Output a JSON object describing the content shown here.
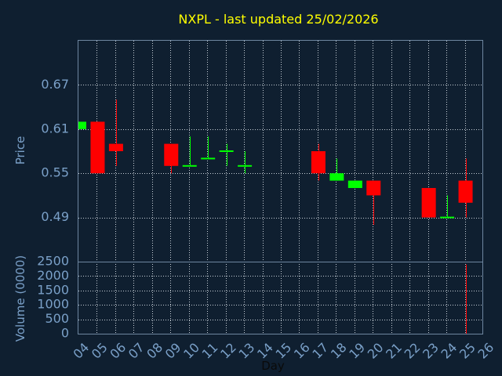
{
  "chart_data": {
    "type": "candlestick",
    "title": "NXPL - last updated 25/02/2026",
    "xlabel": "Day",
    "ylabel": "Price",
    "volume_label": "Volume (0000)",
    "colors": {
      "up": "#00ff00",
      "down": "#ff0000",
      "title": "#ffff00",
      "axis_text": "#7aa0c8",
      "background": "#0f1f30"
    },
    "x_ticks": [
      "04",
      "05",
      "06",
      "07",
      "08",
      "09",
      "10",
      "11",
      "12",
      "13",
      "14",
      "15",
      "16",
      "17",
      "18",
      "19",
      "20",
      "21",
      "22",
      "23",
      "24",
      "25",
      "26"
    ],
    "price_ticks": [
      0.49,
      0.55,
      0.61,
      0.67
    ],
    "price_tick_labels": [
      "0.49",
      "0.55",
      "0.61",
      "0.67"
    ],
    "price_range": [
      0.43,
      0.73
    ],
    "volume_ticks": [
      0,
      500,
      1000,
      1500,
      2000,
      2500
    ],
    "volume_tick_labels": [
      "0",
      "500",
      "1000",
      "1500",
      "2000",
      "2500"
    ],
    "volume_range": [
      0,
      2500
    ],
    "grid": true,
    "candles": [
      {
        "day": "04",
        "open": 0.61,
        "high": 0.62,
        "low": 0.61,
        "close": 0.62,
        "volume": 0
      },
      {
        "day": "05",
        "open": 0.62,
        "high": 0.62,
        "low": 0.55,
        "close": 0.55,
        "volume": 0
      },
      {
        "day": "06",
        "open": 0.59,
        "high": 0.65,
        "low": 0.56,
        "close": 0.58,
        "volume": 0
      },
      {
        "day": "09",
        "open": 0.59,
        "high": 0.59,
        "low": 0.55,
        "close": 0.56,
        "volume": 0
      },
      {
        "day": "10",
        "open": 0.56,
        "high": 0.6,
        "low": 0.56,
        "close": 0.56,
        "volume": 0
      },
      {
        "day": "11",
        "open": 0.57,
        "high": 0.6,
        "low": 0.57,
        "close": 0.57,
        "volume": 0
      },
      {
        "day": "12",
        "open": 0.58,
        "high": 0.59,
        "low": 0.56,
        "close": 0.58,
        "volume": 0
      },
      {
        "day": "13",
        "open": 0.56,
        "high": 0.58,
        "low": 0.55,
        "close": 0.56,
        "volume": 0
      },
      {
        "day": "17",
        "open": 0.58,
        "high": 0.59,
        "low": 0.54,
        "close": 0.55,
        "volume": 0
      },
      {
        "day": "18",
        "open": 0.54,
        "high": 0.57,
        "low": 0.54,
        "close": 0.55,
        "volume": 0
      },
      {
        "day": "19",
        "open": 0.53,
        "high": 0.54,
        "low": 0.53,
        "close": 0.54,
        "volume": 0
      },
      {
        "day": "20",
        "open": 0.54,
        "high": 0.54,
        "low": 0.48,
        "close": 0.52,
        "volume": 0
      },
      {
        "day": "23",
        "open": 0.53,
        "high": 0.53,
        "low": 0.49,
        "close": 0.49,
        "volume": 0
      },
      {
        "day": "24",
        "open": 0.49,
        "high": 0.52,
        "low": 0.49,
        "close": 0.49,
        "volume": 0
      },
      {
        "day": "25",
        "open": 0.54,
        "high": 0.57,
        "low": 0.49,
        "close": 0.51,
        "volume": 2400
      }
    ]
  }
}
